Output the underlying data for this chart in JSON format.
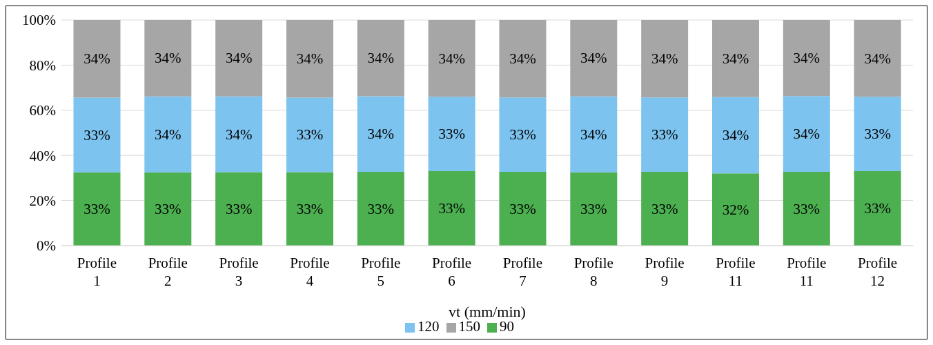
{
  "chart_data": {
    "type": "bar",
    "stacked": true,
    "xlabel": "vt (mm/min)",
    "categories": [
      "Profile 1",
      "Profile 2",
      "Profile 3",
      "Profile 4",
      "Profile 5",
      "Profile 6",
      "Profile 7",
      "Profile 8",
      "Profile 9",
      "Profile 11",
      "Profile 11",
      "Profile 12"
    ],
    "series": [
      {
        "name": "90",
        "color": "#4caf50",
        "values": [
          32.5,
          32.5,
          32.6,
          32.6,
          32.7,
          33.0,
          32.7,
          32.5,
          32.7,
          32.0,
          32.7,
          33.0
        ],
        "value_labels": [
          "33%",
          "33%",
          "33%",
          "33%",
          "33%",
          "33%",
          "33%",
          "33%",
          "33%",
          "32%",
          "33%",
          "33%"
        ]
      },
      {
        "name": "120",
        "color": "#7cc3ef",
        "values": [
          33.1,
          33.6,
          33.5,
          33.0,
          33.5,
          33.0,
          33.0,
          33.6,
          33.0,
          33.8,
          33.6,
          33.0
        ],
        "value_labels": [
          "33%",
          "34%",
          "34%",
          "33%",
          "34%",
          "33%",
          "33%",
          "34%",
          "33%",
          "34%",
          "34%",
          "33%"
        ]
      },
      {
        "name": "150",
        "color": "#a6a6a6",
        "values": [
          34.4,
          34.0,
          33.9,
          34.4,
          33.8,
          34.0,
          34.3,
          33.9,
          34.3,
          34.2,
          33.7,
          34.0
        ],
        "value_labels": [
          "34%",
          "34%",
          "34%",
          "34%",
          "34%",
          "34%",
          "34%",
          "34%",
          "34%",
          "34%",
          "34%",
          "34%"
        ]
      }
    ],
    "ylim": [
      0,
      100
    ],
    "yticks": [
      {
        "value": 0,
        "label": "0%"
      },
      {
        "value": 20,
        "label": "20%"
      },
      {
        "value": 40,
        "label": "40%"
      },
      {
        "value": 60,
        "label": "60%"
      },
      {
        "value": 80,
        "label": "80%"
      },
      {
        "value": 100,
        "label": "100%"
      }
    ],
    "grid": "y",
    "legend": "bottom"
  }
}
